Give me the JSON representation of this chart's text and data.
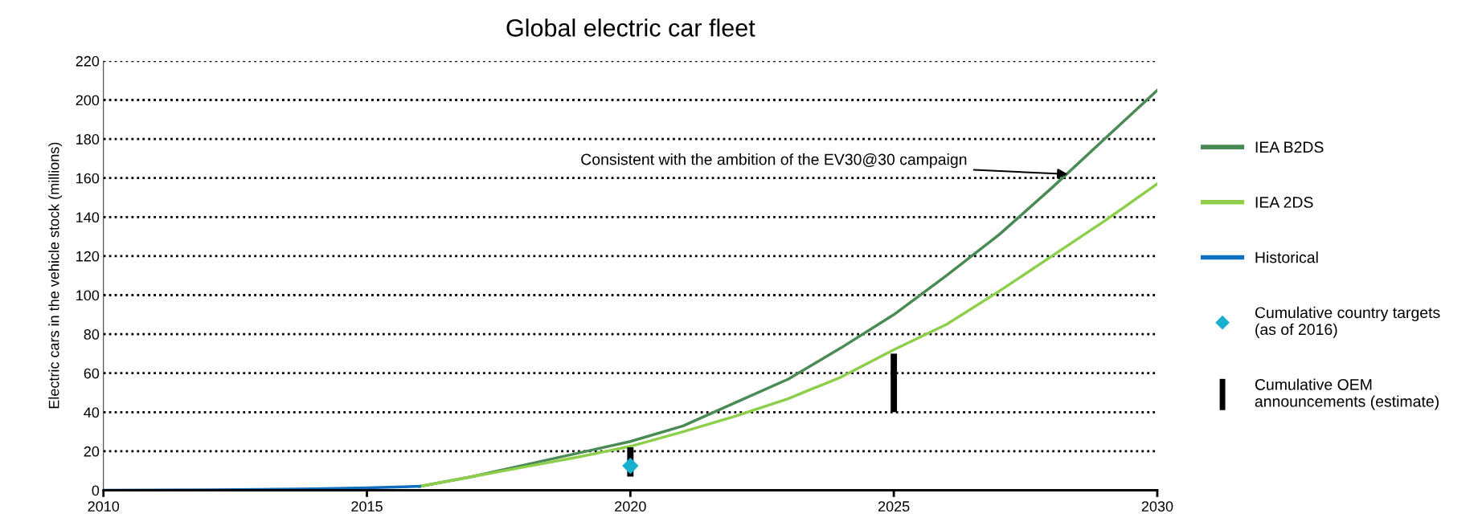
{
  "chart_data": {
    "type": "line",
    "title": "Global electric car fleet",
    "ylabel": "Electric cars in the vehicle stock (millions)",
    "xlim": [
      2010,
      2030
    ],
    "xticks": [
      2010,
      2015,
      2020,
      2025,
      2030
    ],
    "ylim": [
      0,
      220
    ],
    "yticks": [
      0,
      20,
      40,
      60,
      80,
      100,
      120,
      140,
      160,
      180,
      200,
      220
    ],
    "grid": "y",
    "legend": "right",
    "line_style": "solid",
    "annotations": [
      {
        "text": "Consistent with the ambition of the EV30@30 campaign",
        "x": 2028.3,
        "y": 162
      }
    ],
    "series": [
      {
        "name": "IEA B2DS",
        "color": "#4a8a55",
        "x": [
          2016,
          2017,
          2018,
          2019,
          2020,
          2021,
          2022,
          2023,
          2024,
          2025,
          2026,
          2027,
          2028,
          2029,
          2030
        ],
        "values": [
          2,
          7,
          13,
          19,
          25,
          33,
          45,
          57,
          73,
          90,
          110,
          131,
          155,
          180,
          205
        ]
      },
      {
        "name": "IEA 2DS",
        "color": "#8dcf4a",
        "x": [
          2016,
          2017,
          2018,
          2019,
          2020,
          2021,
          2022,
          2023,
          2024,
          2025,
          2026,
          2027,
          2028,
          2029,
          2030
        ],
        "values": [
          2,
          7,
          12,
          17,
          22.5,
          30,
          38,
          47,
          58,
          72,
          85,
          102,
          120,
          138,
          157
        ]
      },
      {
        "name": "Historical",
        "color": "#1070c0",
        "x": [
          2010,
          2011,
          2012,
          2013,
          2014,
          2015,
          2016
        ],
        "values": [
          0,
          0.1,
          0.2,
          0.4,
          0.7,
          1.2,
          2
        ]
      },
      {
        "name": "Cumulative country targets (as of 2016)",
        "type": "scatter",
        "marker": "diamond",
        "color": "#1ab0d0",
        "x": [
          2020
        ],
        "values": [
          12.5
        ]
      },
      {
        "name": "Cumulative OEM announcements (estimate)",
        "type": "bar",
        "color": "#000000",
        "x": [
          2020,
          2025
        ],
        "base": [
          7,
          40
        ],
        "values": [
          15,
          30
        ]
      }
    ]
  }
}
